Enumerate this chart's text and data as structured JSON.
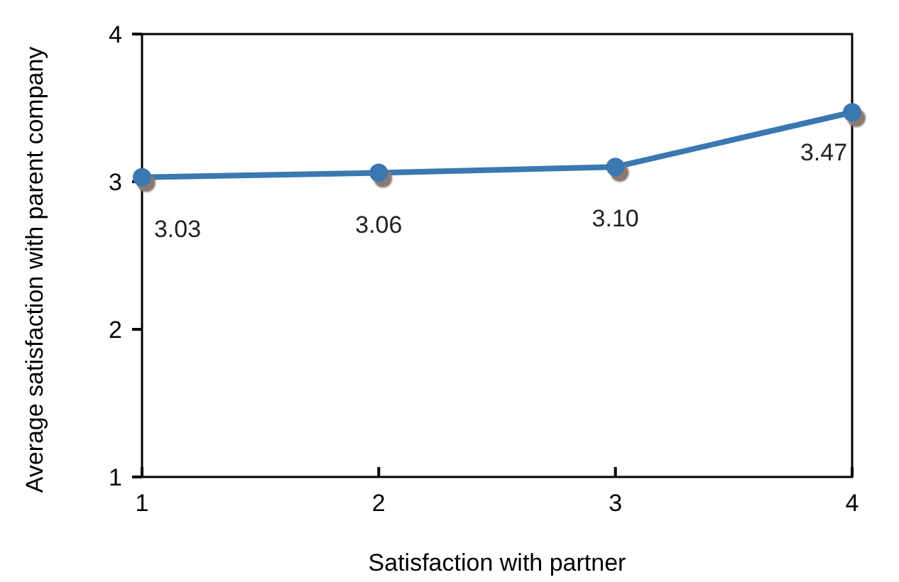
{
  "chart_data": {
    "type": "line",
    "xlabel": "Satisfaction with partner",
    "ylabel": "Average satisfaction with parent company",
    "x": [
      1,
      2,
      3,
      4
    ],
    "values": [
      3.03,
      3.06,
      3.1,
      3.47
    ],
    "color": "#3b78b1",
    "marker": "circle",
    "value_labels": [
      "3.03",
      "3.06",
      "3.10",
      "3.47"
    ],
    "xlim": [
      1,
      4
    ],
    "xticks": [
      1,
      2,
      3,
      4
    ],
    "ylim": [
      1,
      4
    ],
    "yticks": [
      1,
      2,
      3,
      4
    ],
    "grid": false
  }
}
